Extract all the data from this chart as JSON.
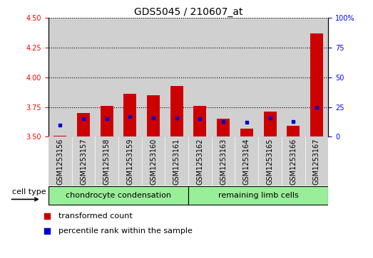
{
  "title": "GDS5045 / 210607_at",
  "samples": [
    "GSM1253156",
    "GSM1253157",
    "GSM1253158",
    "GSM1253159",
    "GSM1253160",
    "GSM1253161",
    "GSM1253162",
    "GSM1253163",
    "GSM1253164",
    "GSM1253165",
    "GSM1253166",
    "GSM1253167"
  ],
  "red_values": [
    3.51,
    3.7,
    3.76,
    3.86,
    3.85,
    3.93,
    3.76,
    3.65,
    3.57,
    3.71,
    3.59,
    4.37
  ],
  "blue_percentiles": [
    10,
    15,
    15,
    17,
    16,
    16,
    15,
    13,
    12,
    16,
    13,
    25
  ],
  "ylim_left": [
    3.5,
    4.5
  ],
  "ylim_right": [
    0,
    100
  ],
  "yticks_left": [
    3.5,
    3.75,
    4.0,
    4.25,
    4.5
  ],
  "yticks_right": [
    0,
    25,
    50,
    75,
    100
  ],
  "group1_label": "chondrocyte condensation",
  "group2_label": "remaining limb cells",
  "group1_count": 6,
  "group2_count": 6,
  "cell_type_label": "cell type",
  "legend1": "transformed count",
  "legend2": "percentile rank within the sample",
  "bar_color": "#cc0000",
  "dot_color": "#0000cc",
  "group_bg_color": "#99ee99",
  "sample_bg_color": "#d0d0d0",
  "bar_width": 0.55,
  "grid_color": "black",
  "title_fontsize": 10,
  "tick_fontsize": 7,
  "label_fontsize": 8
}
